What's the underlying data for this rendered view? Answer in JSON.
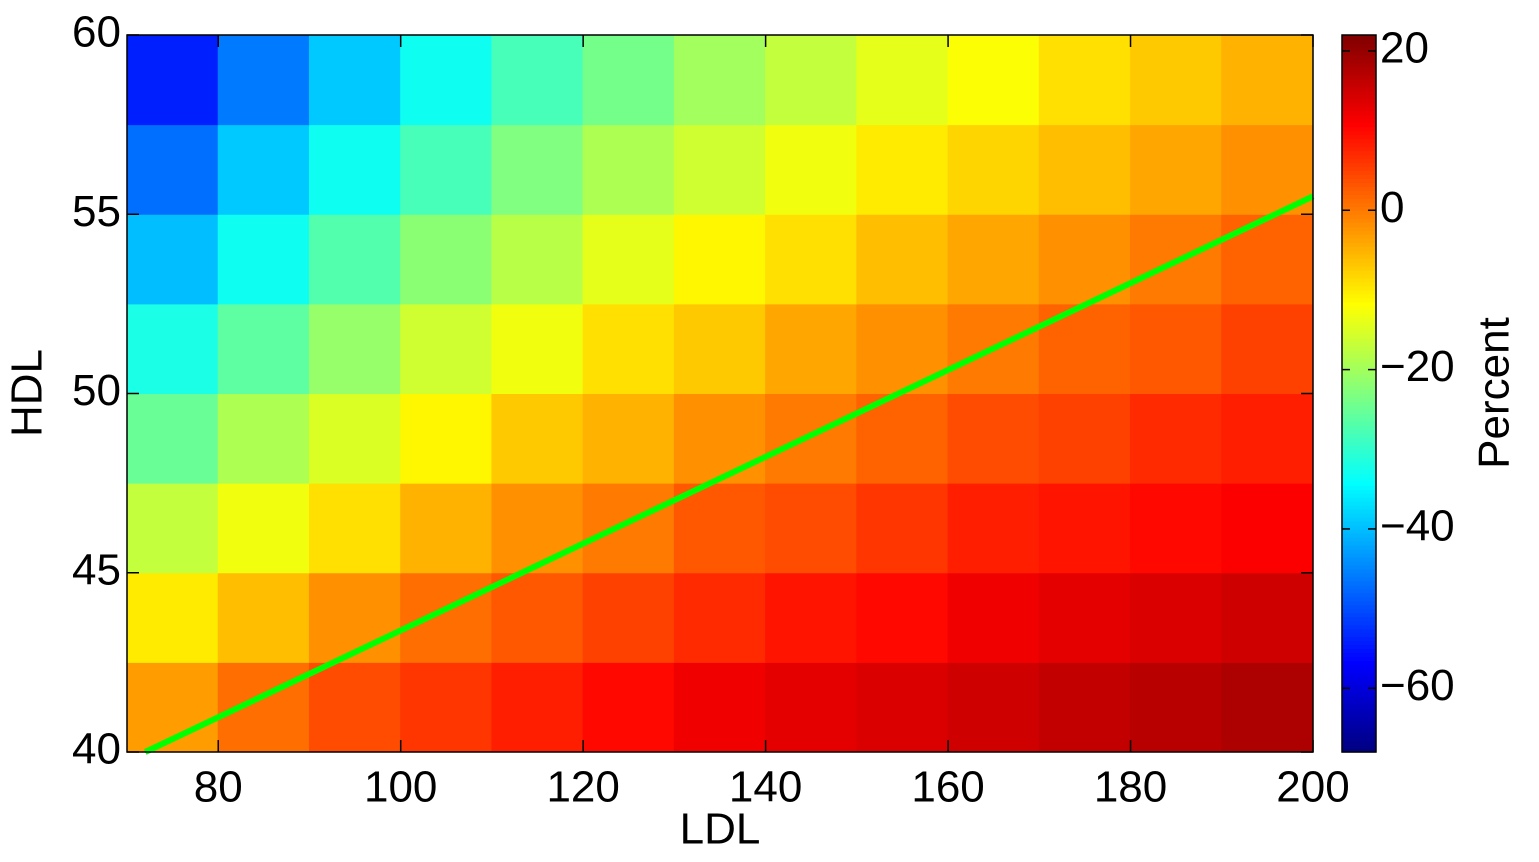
{
  "chart_data": {
    "type": "heatmap",
    "xlabel": "LDL",
    "ylabel": "HDL",
    "xlim": [
      70,
      200
    ],
    "xticks": [
      80,
      100,
      120,
      140,
      160,
      180,
      200
    ],
    "ylim": [
      40,
      60
    ],
    "yticks": [
      40,
      45,
      50,
      55,
      60
    ],
    "xbins": [
      70,
      80,
      90,
      100,
      110,
      120,
      130,
      140,
      150,
      160,
      170,
      180,
      190,
      200
    ],
    "ybins": [
      40,
      42.5,
      45,
      47.5,
      50,
      52.5,
      55,
      57.5,
      60
    ],
    "z": [
      [
        -3,
        1,
        4,
        6,
        8,
        10,
        12,
        13,
        14,
        15,
        16,
        17,
        18
      ],
      [
        -10,
        -6,
        -2,
        1,
        3,
        5,
        7,
        9,
        10,
        12,
        13,
        14,
        15
      ],
      [
        -17,
        -13,
        -9,
        -5,
        -2,
        0,
        3,
        4,
        6,
        8,
        9,
        10,
        11
      ],
      [
        -25,
        -19,
        -15,
        -11,
        -7,
        -5,
        -2,
        0,
        2,
        4,
        5,
        7,
        8
      ],
      [
        -32,
        -26,
        -21,
        -16,
        -13,
        -9,
        -7,
        -4,
        -2,
        0,
        2,
        3,
        5
      ],
      [
        -40,
        -33,
        -27,
        -22,
        -18,
        -14,
        -11,
        -9,
        -6,
        -4,
        -2,
        0,
        2
      ],
      [
        -47,
        -39,
        -33,
        -28,
        -23,
        -19,
        -16,
        -13,
        -10,
        -8,
        -6,
        -4,
        -2
      ],
      [
        -54,
        -46,
        -39,
        -33,
        -28,
        -24,
        -20,
        -17,
        -14,
        -12,
        -9,
        -7,
        -5
      ]
    ],
    "colormap": "jet",
    "clim": [
      -68,
      22
    ],
    "cticks": [
      {
        "value": -60,
        "label": "−60"
      },
      {
        "value": -40,
        "label": "−40"
      },
      {
        "value": -20,
        "label": "−20"
      },
      0,
      20
    ],
    "clabel": "Percent",
    "series": [
      {
        "x": [
          72,
          200
        ],
        "values": [
          40,
          55.5
        ],
        "color": "#00ff00"
      }
    ]
  }
}
